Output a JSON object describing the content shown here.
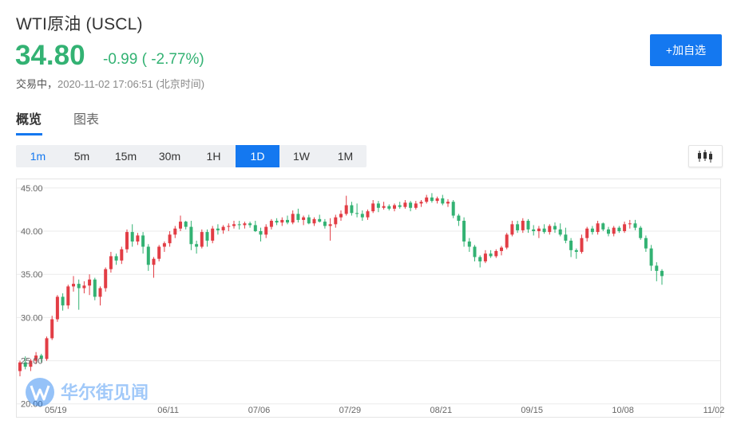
{
  "header": {
    "title": "WTI原油 (USCL)",
    "price": "34.80",
    "change": "-0.99 ( -2.77%)",
    "status": "交易中，",
    "timestamp": "2020-11-02 17:06:51 (北京时间)",
    "add_watchlist_label": "+加自选"
  },
  "tabs": [
    {
      "label": "概览",
      "active": true
    },
    {
      "label": "图表",
      "active": false
    }
  ],
  "periods": [
    {
      "label": "1m",
      "state": "highlight"
    },
    {
      "label": "5m",
      "state": "normal"
    },
    {
      "label": "15m",
      "state": "normal"
    },
    {
      "label": "30m",
      "state": "normal"
    },
    {
      "label": "1H",
      "state": "normal"
    },
    {
      "label": "1D",
      "state": "selected"
    },
    {
      "label": "1W",
      "state": "normal"
    },
    {
      "label": "1M",
      "state": "normal"
    }
  ],
  "chart_type_icon": "candlestick-icon",
  "colors": {
    "up": "#e23d45",
    "down": "#33b273",
    "accent": "#1478f0"
  },
  "watermark": {
    "text": "华尔街见闻",
    "icon": "w-logo-icon"
  },
  "chart_data": {
    "type": "candlestick",
    "ylim": [
      18.5,
      46
    ],
    "y_ticks": [
      "45.00",
      "40.00",
      "35.00",
      "30.00",
      "25.00",
      "20.00"
    ],
    "y_tick_values": [
      45,
      40,
      35,
      30,
      25,
      20
    ],
    "x_ticks": [
      "05/19",
      "06/11",
      "07/06",
      "07/29",
      "08/21",
      "09/15",
      "10/08",
      "11/02"
    ],
    "x_tick_index": [
      7,
      28,
      45,
      62,
      79,
      96,
      113,
      130
    ],
    "grid": true,
    "candles": [
      [
        23.8,
        25.0,
        23.2,
        24.8
      ],
      [
        24.8,
        25.5,
        24.0,
        24.3
      ],
      [
        24.3,
        25.2,
        23.8,
        25.0
      ],
      [
        25.0,
        26.0,
        24.6,
        25.6
      ],
      [
        25.6,
        25.8,
        24.8,
        25.2
      ],
      [
        25.2,
        27.8,
        25.0,
        27.6
      ],
      [
        27.6,
        30.2,
        27.4,
        29.8
      ],
      [
        29.8,
        32.6,
        29.5,
        32.4
      ],
      [
        32.4,
        32.8,
        30.8,
        31.4
      ],
      [
        31.4,
        33.8,
        31.0,
        33.6
      ],
      [
        33.6,
        34.8,
        33.0,
        33.9
      ],
      [
        33.9,
        34.4,
        30.9,
        33.4
      ],
      [
        33.4,
        34.2,
        32.8,
        33.7
      ],
      [
        33.7,
        35.0,
        32.6,
        34.4
      ],
      [
        34.4,
        34.6,
        32.0,
        32.4
      ],
      [
        32.4,
        33.6,
        31.4,
        33.4
      ],
      [
        33.4,
        35.8,
        33.0,
        35.6
      ],
      [
        35.6,
        37.6,
        35.2,
        37.1
      ],
      [
        37.1,
        37.4,
        36.1,
        36.6
      ],
      [
        36.6,
        38.2,
        36.2,
        37.9
      ],
      [
        37.9,
        40.2,
        37.5,
        39.9
      ],
      [
        39.9,
        40.8,
        38.2,
        38.8
      ],
      [
        38.8,
        39.8,
        38.4,
        39.5
      ],
      [
        39.5,
        39.9,
        37.4,
        38.2
      ],
      [
        38.2,
        38.5,
        35.4,
        36.1
      ],
      [
        36.1,
        37.0,
        34.6,
        36.8
      ],
      [
        36.8,
        38.4,
        36.5,
        38.2
      ],
      [
        38.2,
        38.8,
        37.6,
        38.6
      ],
      [
        38.6,
        40.0,
        38.2,
        39.6
      ],
      [
        39.6,
        40.6,
        39.2,
        40.3
      ],
      [
        40.3,
        41.8,
        40.0,
        41.1
      ],
      [
        41.1,
        41.2,
        40.2,
        40.5
      ],
      [
        40.5,
        41.2,
        37.8,
        38.5
      ],
      [
        38.5,
        38.9,
        37.4,
        38.2
      ],
      [
        38.2,
        40.2,
        38.0,
        39.9
      ],
      [
        39.9,
        40.2,
        38.2,
        38.9
      ],
      [
        38.9,
        40.6,
        38.6,
        40.3
      ],
      [
        40.3,
        40.8,
        39.6,
        40.1
      ],
      [
        40.1,
        40.7,
        39.7,
        40.5
      ],
      [
        40.5,
        40.9,
        40.0,
        40.6
      ],
      [
        40.6,
        41.2,
        40.3,
        40.8
      ],
      [
        40.8,
        41.2,
        40.2,
        40.7
      ],
      [
        40.7,
        41.1,
        40.3,
        40.9
      ],
      [
        40.9,
        41.1,
        40.4,
        40.7
      ],
      [
        40.7,
        41.2,
        39.9,
        40.0
      ],
      [
        40.0,
        40.4,
        38.8,
        39.6
      ],
      [
        39.6,
        40.8,
        39.2,
        40.5
      ],
      [
        40.5,
        41.4,
        40.2,
        41.2
      ],
      [
        41.2,
        41.5,
        40.7,
        41.0
      ],
      [
        41.0,
        41.6,
        40.6,
        41.3
      ],
      [
        41.3,
        41.8,
        40.8,
        41.0
      ],
      [
        41.0,
        42.4,
        40.8,
        42.0
      ],
      [
        42.0,
        42.6,
        41.0,
        41.3
      ],
      [
        41.3,
        41.8,
        40.7,
        41.6
      ],
      [
        41.6,
        41.9,
        40.8,
        40.9
      ],
      [
        40.9,
        41.6,
        40.6,
        41.4
      ],
      [
        41.4,
        41.9,
        41.0,
        41.1
      ],
      [
        41.1,
        41.4,
        40.3,
        40.6
      ],
      [
        40.6,
        41.5,
        38.9,
        40.8
      ],
      [
        40.8,
        41.9,
        40.4,
        41.6
      ],
      [
        41.6,
        42.4,
        41.2,
        42.0
      ],
      [
        42.0,
        44.1,
        41.8,
        43.0
      ],
      [
        43.0,
        43.4,
        41.8,
        42.1
      ],
      [
        42.1,
        43.2,
        41.6,
        42.0
      ],
      [
        42.0,
        42.4,
        41.2,
        41.6
      ],
      [
        41.6,
        42.5,
        41.3,
        42.3
      ],
      [
        42.3,
        43.6,
        42.1,
        43.2
      ],
      [
        43.2,
        43.5,
        42.2,
        42.7
      ],
      [
        42.7,
        43.4,
        42.5,
        42.9
      ],
      [
        42.9,
        43.1,
        42.4,
        42.6
      ],
      [
        42.6,
        43.2,
        42.3,
        43.0
      ],
      [
        43.0,
        43.4,
        42.6,
        42.8
      ],
      [
        42.8,
        43.6,
        42.6,
        43.3
      ],
      [
        43.3,
        43.5,
        42.3,
        42.7
      ],
      [
        42.7,
        43.5,
        42.5,
        43.2
      ],
      [
        43.2,
        43.6,
        42.8,
        43.4
      ],
      [
        43.4,
        44.2,
        43.2,
        43.9
      ],
      [
        43.9,
        44.4,
        43.3,
        43.5
      ],
      [
        43.5,
        44.0,
        43.2,
        43.8
      ],
      [
        43.8,
        44.2,
        43.0,
        43.2
      ],
      [
        43.2,
        43.7,
        42.8,
        43.4
      ],
      [
        43.4,
        43.6,
        41.5,
        41.8
      ],
      [
        41.8,
        42.0,
        40.6,
        41.2
      ],
      [
        41.2,
        41.6,
        38.2,
        38.8
      ],
      [
        38.8,
        39.2,
        37.6,
        38.2
      ],
      [
        38.2,
        38.4,
        36.5,
        37.0
      ],
      [
        37.0,
        37.2,
        35.8,
        36.5
      ],
      [
        36.5,
        37.8,
        36.3,
        37.4
      ],
      [
        37.4,
        37.8,
        36.9,
        37.1
      ],
      [
        37.1,
        37.9,
        36.9,
        37.7
      ],
      [
        37.7,
        38.3,
        37.2,
        38.1
      ],
      [
        38.1,
        39.8,
        37.9,
        39.6
      ],
      [
        39.6,
        41.2,
        39.4,
        40.8
      ],
      [
        40.8,
        41.2,
        39.8,
        40.1
      ],
      [
        40.1,
        41.5,
        39.8,
        41.2
      ],
      [
        41.2,
        41.4,
        39.8,
        40.2
      ],
      [
        40.2,
        40.7,
        39.5,
        40.0
      ],
      [
        40.0,
        40.6,
        39.2,
        40.3
      ],
      [
        40.3,
        40.8,
        39.7,
        39.9
      ],
      [
        39.9,
        40.8,
        39.6,
        40.6
      ],
      [
        40.6,
        41.0,
        39.8,
        40.2
      ],
      [
        40.2,
        40.9,
        39.4,
        39.6
      ],
      [
        39.6,
        40.4,
        38.6,
        38.9
      ],
      [
        38.9,
        39.2,
        37.0,
        37.8
      ],
      [
        37.8,
        38.0,
        36.8,
        37.6
      ],
      [
        37.6,
        39.6,
        37.4,
        39.2
      ],
      [
        39.2,
        40.5,
        38.8,
        40.3
      ],
      [
        40.3,
        40.6,
        39.6,
        39.9
      ],
      [
        39.9,
        41.2,
        39.6,
        40.9
      ],
      [
        40.9,
        41.0,
        40.0,
        40.2
      ],
      [
        40.2,
        40.5,
        39.4,
        39.7
      ],
      [
        39.7,
        40.6,
        39.4,
        40.4
      ],
      [
        40.4,
        40.6,
        39.8,
        40.0
      ],
      [
        40.0,
        41.1,
        39.8,
        40.8
      ],
      [
        40.8,
        41.3,
        40.3,
        40.9
      ],
      [
        40.9,
        41.3,
        40.1,
        40.4
      ],
      [
        40.4,
        40.6,
        39.0,
        39.2
      ],
      [
        39.2,
        39.5,
        37.6,
        38.0
      ],
      [
        38.0,
        38.4,
        35.4,
        36.0
      ],
      [
        36.0,
        36.4,
        34.2,
        35.4
      ],
      [
        35.4,
        35.6,
        33.8,
        34.8
      ]
    ]
  }
}
